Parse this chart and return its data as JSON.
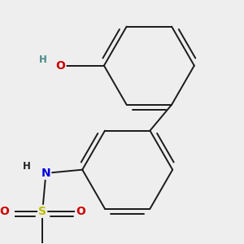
{
  "background_color": "#eeeeee",
  "bond_color": "#1a1a1a",
  "bond_width": 1.4,
  "dbo": 0.055,
  "figsize": [
    3.0,
    3.0
  ],
  "dpi": 100,
  "atom_colors": {
    "O": "#cc0000",
    "N": "#0000dd",
    "S": "#bbbb00",
    "H_on_O": "#4a8a8a",
    "H_on_N": "#222222",
    "C": "#1a1a1a"
  },
  "font_size_atoms": 10,
  "font_size_H": 8.5,
  "ring_r": 0.52
}
